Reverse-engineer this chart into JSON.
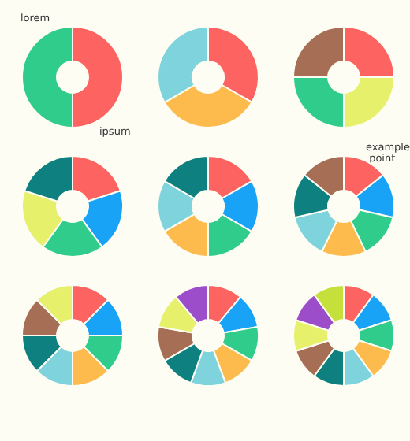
{
  "chart_data": [
    {
      "type": "donut",
      "categories": [
        null,
        null
      ],
      "values": [
        50,
        50
      ],
      "colors": [
        "#fd6360",
        "#2fcc8b"
      ],
      "annotations": [
        "lorem",
        "ipsum"
      ]
    },
    {
      "type": "donut",
      "categories": [
        null,
        null,
        null
      ],
      "values": [
        33.33,
        33.33,
        33.34
      ],
      "colors": [
        "#fd6360",
        "#fcbb4c",
        "#7fd3dc"
      ]
    },
    {
      "type": "donut",
      "categories": [
        null,
        null,
        null,
        null
      ],
      "values": [
        25,
        25,
        25,
        25
      ],
      "colors": [
        "#fd6360",
        "#e6f06a",
        "#2fcc8b",
        "#a66f55"
      ]
    },
    {
      "type": "donut",
      "categories": [
        null,
        null,
        null,
        null,
        null
      ],
      "values": [
        20,
        20,
        20,
        20,
        20
      ],
      "colors": [
        "#fd6360",
        "#18a3f7",
        "#2fcc8b",
        "#e6f06a",
        "#0f8080"
      ]
    },
    {
      "type": "donut",
      "categories": [
        null,
        null,
        null,
        null,
        null,
        null
      ],
      "values": [
        16.67,
        16.67,
        16.67,
        16.67,
        16.66,
        16.66
      ],
      "colors": [
        "#fd6360",
        "#18a3f7",
        "#2fcc8b",
        "#fcbb4c",
        "#7fd3dc",
        "#0f8080"
      ]
    },
    {
      "type": "donut",
      "categories": [
        null,
        null,
        null,
        null,
        null,
        null,
        null
      ],
      "values": [
        14.29,
        14.29,
        14.29,
        14.29,
        14.28,
        14.28,
        14.28
      ],
      "colors": [
        "#fd6360",
        "#18a3f7",
        "#2fcc8b",
        "#fcbb4c",
        "#7fd3dc",
        "#0f8080",
        "#a66f55"
      ],
      "annotations": [
        "example point"
      ]
    },
    {
      "type": "donut",
      "categories": [
        null,
        null,
        null,
        null,
        null,
        null,
        null,
        null
      ],
      "values": [
        12.5,
        12.5,
        12.5,
        12.5,
        12.5,
        12.5,
        12.5,
        12.5
      ],
      "colors": [
        "#fd6360",
        "#18a3f7",
        "#2fcc8b",
        "#fcbb4c",
        "#7fd3dc",
        "#0f8080",
        "#a66f55",
        "#e6f06a"
      ]
    },
    {
      "type": "donut",
      "categories": [
        null,
        null,
        null,
        null,
        null,
        null,
        null,
        null,
        null
      ],
      "values": [
        11.11,
        11.11,
        11.11,
        11.11,
        11.11,
        11.11,
        11.11,
        11.11,
        11.12
      ],
      "colors": [
        "#fd6360",
        "#18a3f7",
        "#2fcc8b",
        "#fcbb4c",
        "#7fd3dc",
        "#0f8080",
        "#a66f55",
        "#e6f06a",
        "#9b4dca"
      ]
    },
    {
      "type": "donut",
      "categories": [
        null,
        null,
        null,
        null,
        null,
        null,
        null,
        null,
        null,
        null
      ],
      "values": [
        10,
        10,
        10,
        10,
        10,
        10,
        10,
        10,
        10,
        10
      ],
      "colors": [
        "#fd6360",
        "#18a3f7",
        "#2fcc8b",
        "#fcbb4c",
        "#7fd3dc",
        "#0f8080",
        "#a66f55",
        "#e6f06a",
        "#9b4dca",
        "#c5e03a"
      ]
    }
  ]
}
